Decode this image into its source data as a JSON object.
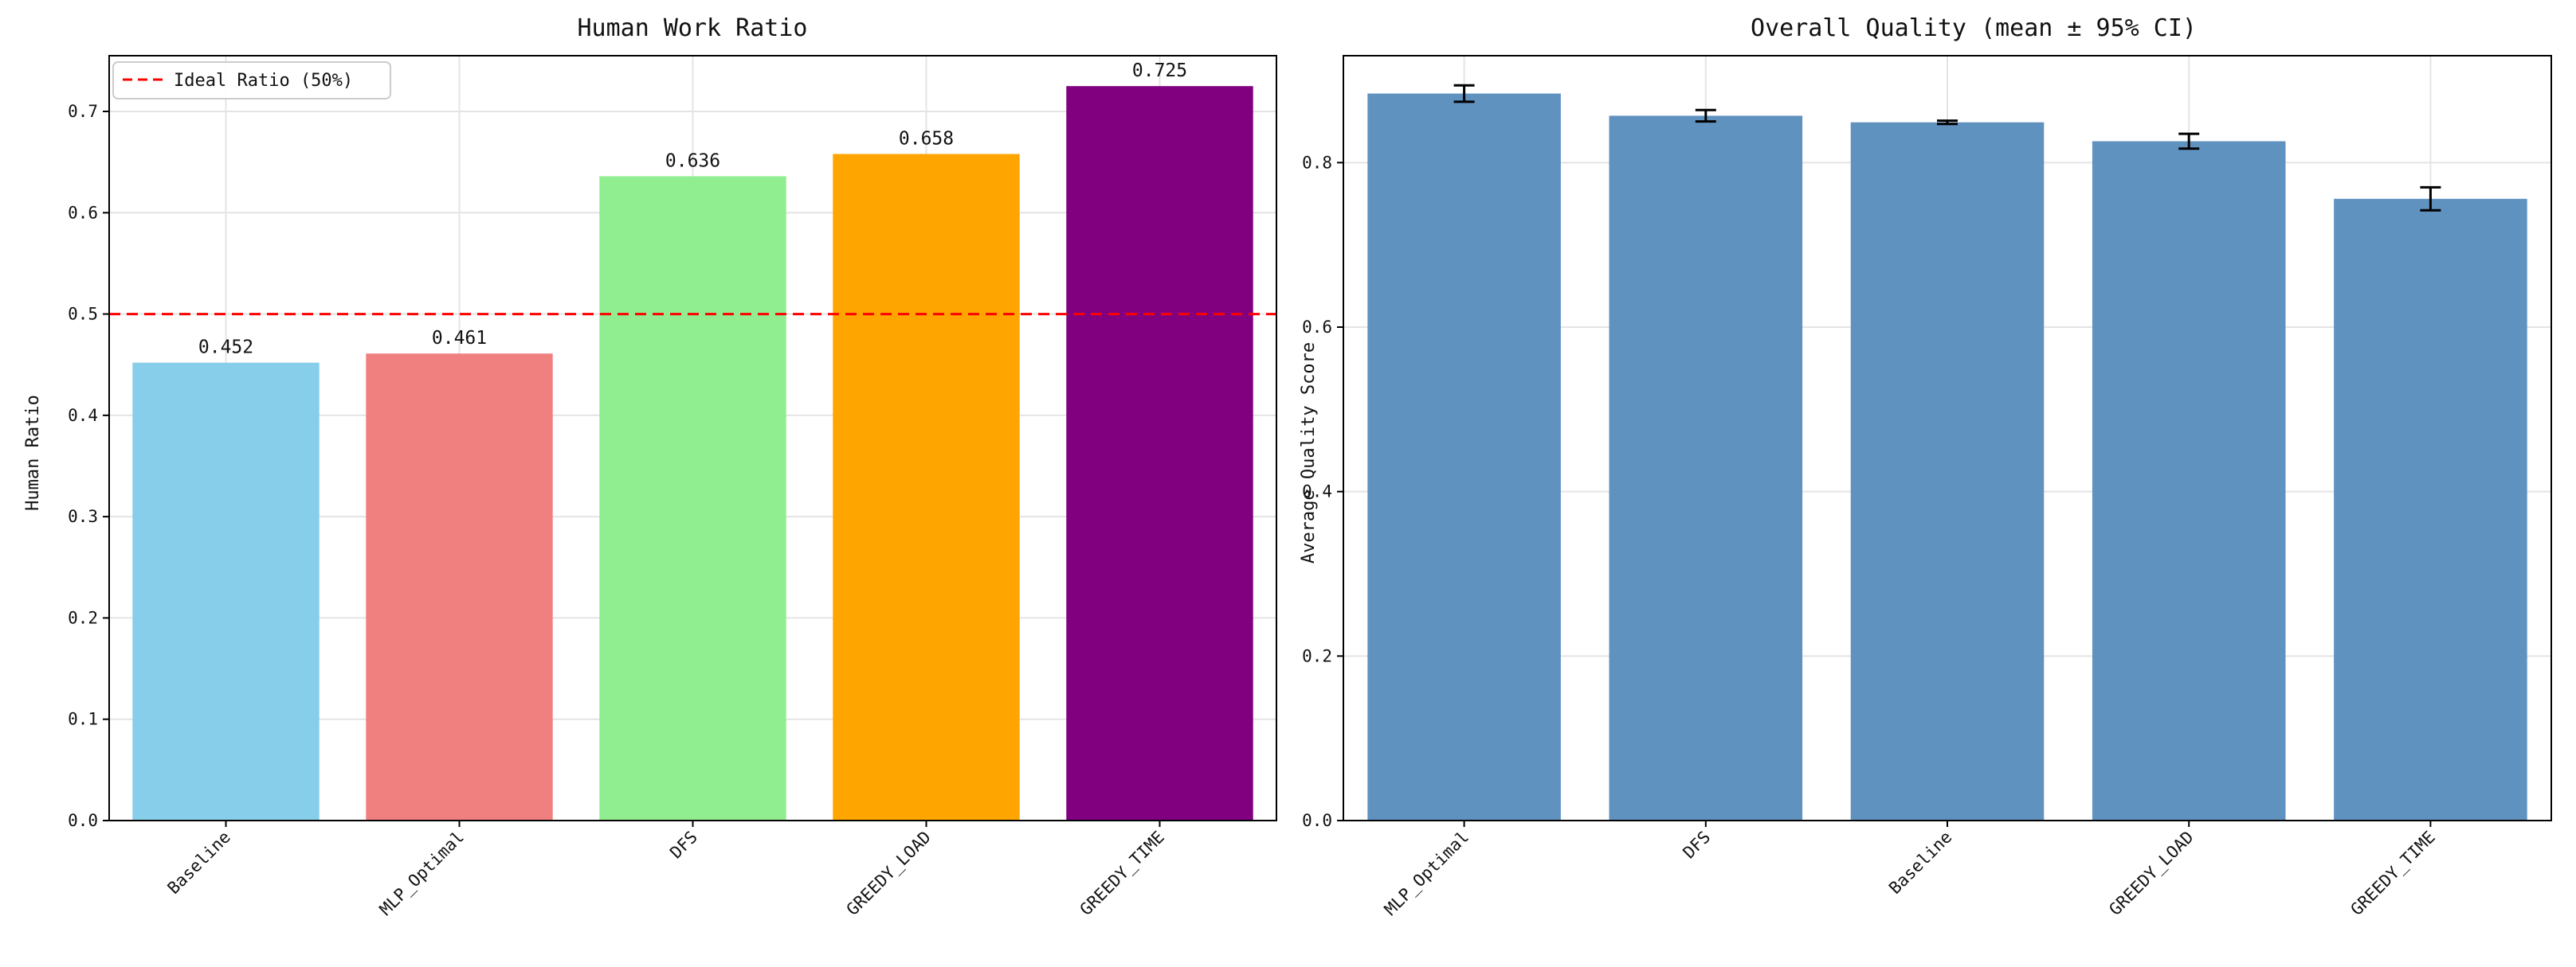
{
  "chart_data": [
    {
      "type": "bar",
      "title": "Human Work Ratio",
      "xlabel": "",
      "ylabel": "Human Ratio",
      "categories": [
        "Baseline",
        "MLP_Optimal",
        "DFS",
        "GREEDY_LOAD",
        "GREEDY_TIME"
      ],
      "values": [
        0.452,
        0.461,
        0.636,
        0.658,
        0.725
      ],
      "data_labels": [
        "0.452",
        "0.461",
        "0.636",
        "0.658",
        "0.725"
      ],
      "colors": [
        "#87ceeb",
        "#f08080",
        "#90ee90",
        "#ffa500",
        "#800080"
      ],
      "ylim": [
        0,
        0.755
      ],
      "yticks": [
        0.0,
        0.1,
        0.2,
        0.3,
        0.4,
        0.5,
        0.6,
        0.7
      ],
      "ytick_labels": [
        "0.0",
        "0.1",
        "0.2",
        "0.3",
        "0.4",
        "0.5",
        "0.6",
        "0.7"
      ],
      "grid": true,
      "reference_line": {
        "value": 0.5,
        "label": "Ideal Ratio (50%)",
        "color": "#ff0000",
        "style": "dashed"
      },
      "legend_placement": "top-left"
    },
    {
      "type": "bar",
      "title": "Overall Quality (mean ± 95% CI)",
      "xlabel": "",
      "ylabel": "Average Quality Score",
      "categories": [
        "MLP_Optimal",
        "DFS",
        "Baseline",
        "GREEDY_LOAD",
        "GREEDY_TIME"
      ],
      "values": [
        0.884,
        0.857,
        0.849,
        0.826,
        0.756
      ],
      "error": [
        0.01,
        0.007,
        0.002,
        0.009,
        0.014
      ],
      "colors": [
        "#6092c0",
        "#6092c0",
        "#6092c0",
        "#6092c0",
        "#6092c0"
      ],
      "ylim": [
        0,
        0.93
      ],
      "yticks": [
        0.0,
        0.2,
        0.4,
        0.6,
        0.8
      ],
      "ytick_labels": [
        "0.0",
        "0.2",
        "0.4",
        "0.6",
        "0.8"
      ],
      "grid": true
    }
  ]
}
